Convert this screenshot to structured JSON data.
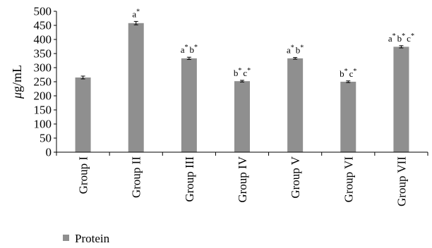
{
  "chart_data": {
    "type": "bar",
    "categories": [
      "Group I",
      "Group II",
      "Group III",
      "Group IV",
      "Group V",
      "Group VI",
      "Group VII"
    ],
    "series": [
      {
        "name": "Protein",
        "values": [
          265,
          458,
          333,
          252,
          333,
          250,
          374
        ],
        "errors": [
          5,
          6,
          4,
          3,
          3,
          3,
          4
        ]
      }
    ],
    "annotations": [
      [],
      [
        {
          "letter": "a",
          "star": "*"
        }
      ],
      [
        {
          "letter": "a",
          "star": "*"
        },
        {
          "letter": "b",
          "star": "*"
        }
      ],
      [
        {
          "letter": "b",
          "star": "*"
        },
        {
          "letter": "c",
          "star": "*"
        }
      ],
      [
        {
          "letter": "a",
          "star": "*"
        },
        {
          "letter": "b",
          "star": "*"
        }
      ],
      [
        {
          "letter": "b",
          "star": "*"
        },
        {
          "letter": "c",
          "star": "*"
        }
      ],
      [
        {
          "letter": "a",
          "star": "*"
        },
        {
          "letter": "b",
          "star": "*"
        },
        {
          "letter": "c",
          "star": "*"
        }
      ]
    ],
    "ylabel_unit_prefix": "μ",
    "ylabel_unit_rest": "g/mL",
    "ylim": [
      0,
      500
    ],
    "yticks": [
      0,
      50,
      100,
      150,
      200,
      250,
      300,
      350,
      400,
      450,
      500
    ],
    "grid": false,
    "legend_position": "bottom-left",
    "colors": {
      "bar": "#8f8f8f",
      "axis": "#000000",
      "errorbar": "#000000"
    }
  }
}
